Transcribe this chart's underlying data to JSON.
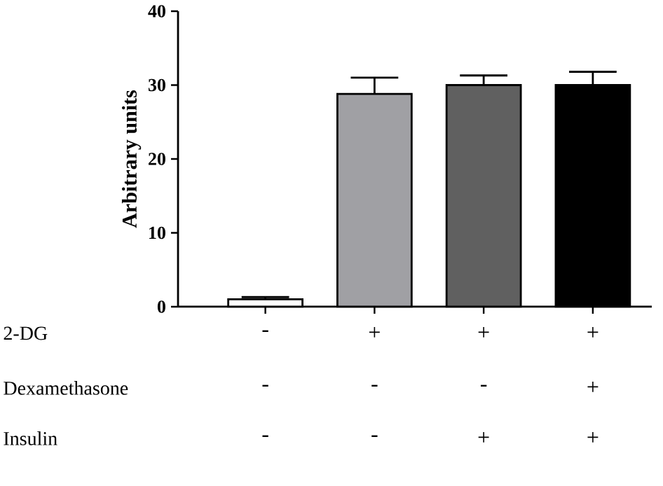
{
  "chart_data": {
    "type": "bar",
    "ylabel": "Arbitrary units",
    "categories": [
      null,
      null,
      null,
      null
    ],
    "values": [
      1.0,
      28.8,
      30.0,
      30.0
    ],
    "errors": [
      0.3,
      2.2,
      1.3,
      1.8
    ],
    "colors": [
      "#ffffff",
      "#a0a0a4",
      "#606060",
      "#000000"
    ],
    "ylim": [
      0,
      40
    ],
    "yticks": [
      0,
      10,
      20,
      30,
      40
    ],
    "grid": false,
    "annotations": [
      "2-DG",
      "-",
      "+",
      "+",
      "+",
      "Dexamethasone",
      "-",
      "-",
      "-",
      "+",
      "Insulin",
      "-",
      "-",
      "+",
      "+"
    ]
  }
}
